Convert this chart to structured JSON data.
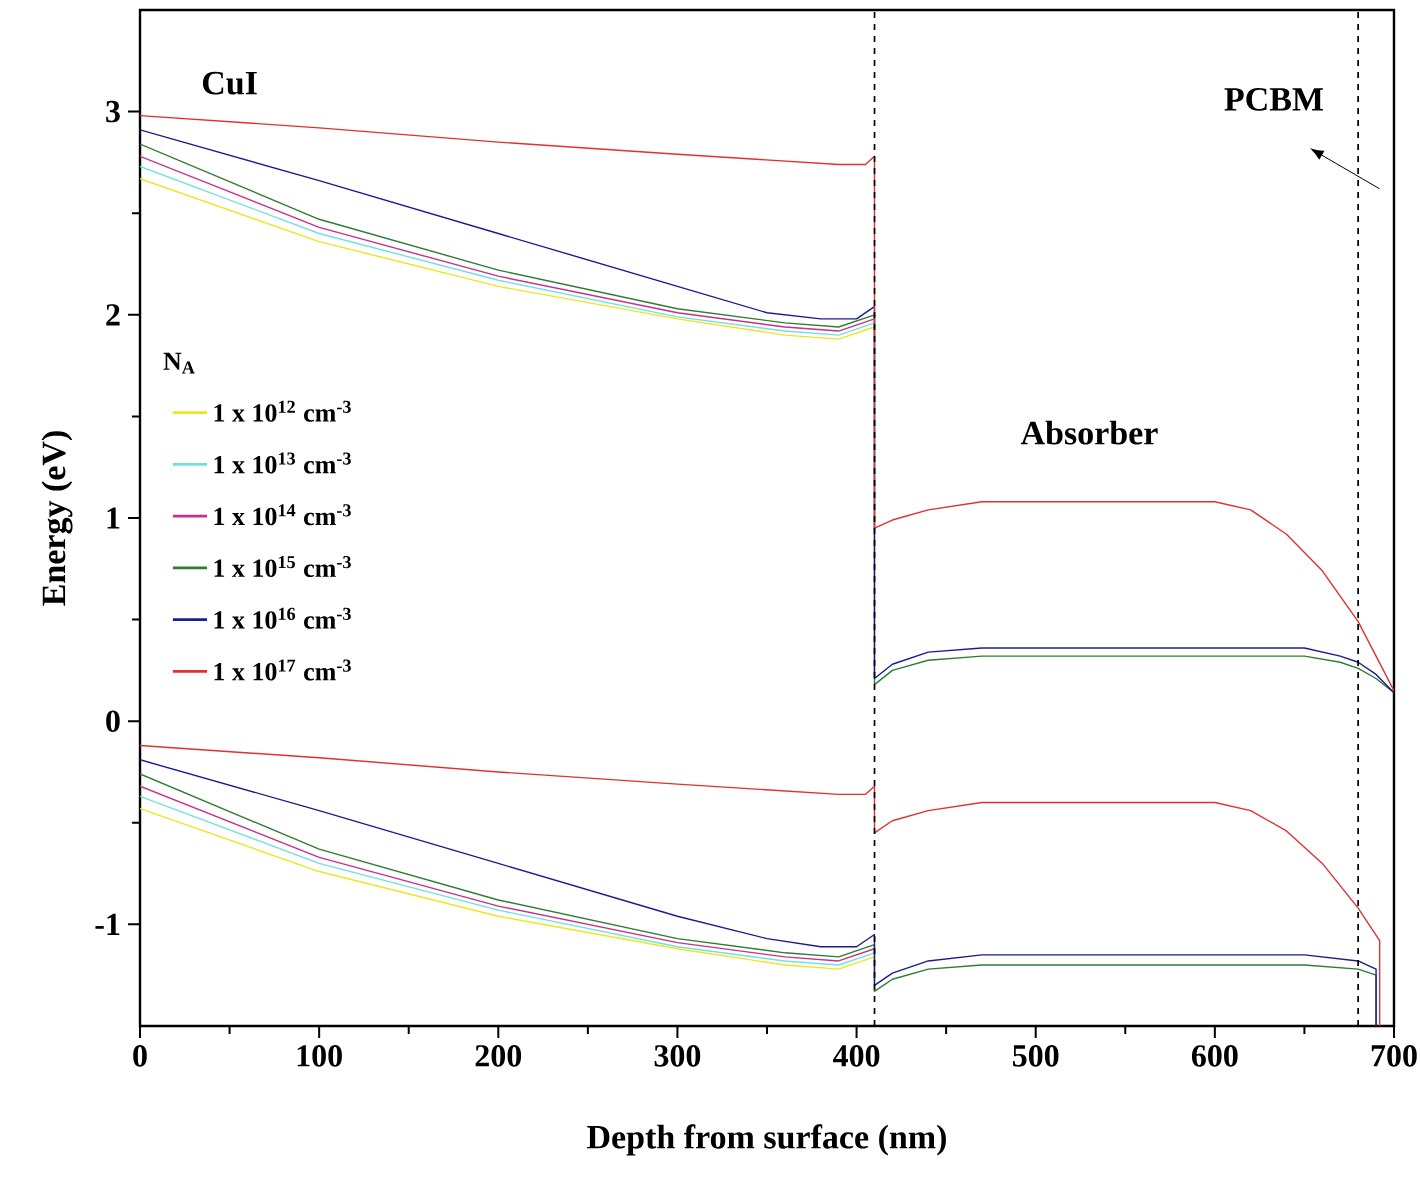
{
  "chart_data": {
    "type": "line",
    "xlabel": "Depth from surface (nm)",
    "ylabel": "Energy (eV)",
    "legend_title": "N$_{A}$",
    "xlim": [
      0,
      700
    ],
    "ylim": [
      -1.5,
      3.5
    ],
    "xticks": [
      0,
      100,
      200,
      300,
      400,
      500,
      600,
      700
    ],
    "yticks": [
      -1,
      0,
      1,
      2,
      3
    ],
    "legend": "left",
    "marker": "none",
    "line_style": "solid",
    "annotations": [
      "CuI",
      "Absorber",
      "PCBM"
    ],
    "ref_lines": [
      {
        "axis": "x",
        "value": 410,
        "color": "#000000",
        "line_style": "dashed"
      },
      {
        "axis": "x",
        "value": 680,
        "color": "#000000",
        "line_style": "dashed"
      }
    ],
    "series": [
      {
        "name": "1 x 10$^{12}$ cm$^{-3}$",
        "color": "#e8e820",
        "x": [
          0,
          100,
          200,
          300,
          360,
          390,
          410
        ],
        "values": [
          2.67,
          2.36,
          2.14,
          1.98,
          1.9,
          1.88,
          1.94
        ]
      },
      {
        "name": "1 x 10$^{13}$ cm$^{-3}$",
        "color": "#70e0e0",
        "x": [
          0,
          100,
          200,
          300,
          360,
          390,
          410
        ],
        "values": [
          2.73,
          2.4,
          2.17,
          1.99,
          1.92,
          1.9,
          1.96
        ]
      },
      {
        "name": "1 x 10$^{14}$ cm$^{-3}$",
        "color": "#c8308a",
        "x": [
          0,
          100,
          200,
          300,
          360,
          390,
          410
        ],
        "values": [
          2.78,
          2.43,
          2.19,
          2.01,
          1.94,
          1.92,
          1.98
        ]
      },
      {
        "name": "1 x 10$^{15}$ cm$^{-3}$",
        "color": "#2e7d32",
        "x": [
          0,
          100,
          200,
          300,
          360,
          390,
          410,
          410,
          420,
          440,
          470,
          650,
          670,
          680,
          690,
          700
        ],
        "values": [
          2.84,
          2.47,
          2.22,
          2.03,
          1.96,
          1.94,
          2.0,
          0.18,
          0.25,
          0.3,
          0.32,
          0.32,
          0.29,
          0.26,
          0.21,
          0.14
        ]
      },
      {
        "name": "1 x 10$^{16}$ cm$^{-3}$",
        "color": "#1c1c8c",
        "x": [
          0,
          100,
          200,
          300,
          350,
          380,
          400,
          410,
          410,
          420,
          440,
          470,
          650,
          670,
          680,
          690,
          700
        ],
        "values": [
          2.91,
          2.66,
          2.4,
          2.14,
          2.01,
          1.98,
          1.98,
          2.04,
          0.21,
          0.28,
          0.34,
          0.36,
          0.36,
          0.32,
          0.29,
          0.23,
          0.14
        ]
      },
      {
        "name": "1 x 10$^{17}$ cm$^{-3}$",
        "color": "#e03030",
        "x": [
          0,
          100,
          200,
          300,
          390,
          405,
          410,
          410,
          420,
          440,
          470,
          600,
          620,
          640,
          660,
          680,
          690,
          700
        ],
        "values": [
          2.98,
          2.92,
          2.85,
          2.79,
          2.74,
          2.74,
          2.78,
          0.95,
          0.99,
          1.04,
          1.08,
          1.08,
          1.04,
          0.92,
          0.74,
          0.49,
          0.32,
          0.15
        ]
      },
      {
        "color": "#e8e820",
        "x": [
          0,
          100,
          200,
          300,
          360,
          390,
          410
        ],
        "values": [
          -0.43,
          -0.74,
          -0.96,
          -1.12,
          -1.2,
          -1.22,
          -1.16
        ]
      },
      {
        "color": "#70e0e0",
        "x": [
          0,
          100,
          200,
          300,
          360,
          390,
          410
        ],
        "values": [
          -0.37,
          -0.7,
          -0.93,
          -1.11,
          -1.18,
          -1.2,
          -1.14
        ]
      },
      {
        "color": "#c8308a",
        "x": [
          0,
          100,
          200,
          300,
          360,
          390,
          410
        ],
        "values": [
          -0.32,
          -0.67,
          -0.91,
          -1.09,
          -1.16,
          -1.18,
          -1.12
        ]
      },
      {
        "color": "#2e7d32",
        "x": [
          0,
          100,
          200,
          300,
          360,
          390,
          410,
          410,
          420,
          440,
          470,
          650,
          680,
          690,
          690
        ],
        "values": [
          -0.26,
          -0.63,
          -0.88,
          -1.07,
          -1.14,
          -1.16,
          -1.1,
          -1.33,
          -1.27,
          -1.22,
          -1.2,
          -1.2,
          -1.22,
          -1.25,
          -1.5
        ]
      },
      {
        "color": "#1c1c8c",
        "x": [
          0,
          100,
          200,
          300,
          350,
          380,
          400,
          410,
          410,
          420,
          440,
          470,
          650,
          680,
          690,
          690
        ],
        "values": [
          -0.19,
          -0.44,
          -0.7,
          -0.96,
          -1.07,
          -1.11,
          -1.11,
          -1.05,
          -1.3,
          -1.24,
          -1.18,
          -1.15,
          -1.15,
          -1.18,
          -1.22,
          -1.5
        ]
      },
      {
        "color": "#e03030",
        "x": [
          0,
          100,
          200,
          300,
          390,
          405,
          410,
          410,
          420,
          440,
          470,
          600,
          620,
          640,
          660,
          680,
          692,
          692
        ],
        "values": [
          -0.12,
          -0.18,
          -0.25,
          -0.31,
          -0.36,
          -0.36,
          -0.32,
          -0.55,
          -0.49,
          -0.44,
          -0.4,
          -0.4,
          -0.44,
          -0.54,
          -0.7,
          -0.92,
          -1.08,
          -1.5
        ]
      }
    ]
  }
}
